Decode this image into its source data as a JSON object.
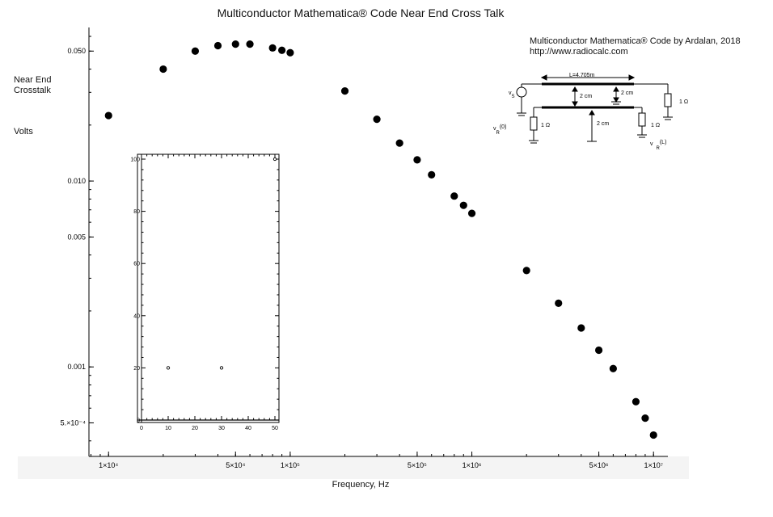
{
  "title": "Multiconductor Mathematica® Code Near End Cross Talk",
  "ylabel_lines": [
    "Near End",
    "Crosstalk"
  ],
  "ylabel_units": "Volts",
  "credit_line1": "Multiconductor Mathematica® Code by Ardalan, 2018",
  "credit_line2": "http://www.radiocalc.com",
  "chart_data": [
    {
      "type": "scatter",
      "title": "Multiconductor Mathematica® Code Near End Cross Talk",
      "xlabel": "Frequency, Hz",
      "ylabel": "Near End Crosstalk Volts",
      "xscale": "log",
      "yscale": "log",
      "xlim": [
        7800,
        12000000
      ],
      "ylim": [
        0.00033,
        0.067
      ],
      "x_ticks": [
        {
          "value": 10000,
          "label": "1×10⁴"
        },
        {
          "value": 50000,
          "label": "5×10⁴"
        },
        {
          "value": 100000,
          "label": "1×10⁵"
        },
        {
          "value": 500000,
          "label": "5×10⁵"
        },
        {
          "value": 1000000,
          "label": "1×10⁶"
        },
        {
          "value": 5000000,
          "label": "5×10⁶"
        },
        {
          "value": 10000000,
          "label": "1×10⁷"
        }
      ],
      "y_ticks": [
        {
          "value": 0.0005,
          "label": "5.×10⁻⁴"
        },
        {
          "value": 0.001,
          "label": "0.001"
        },
        {
          "value": 0.005,
          "label": "0.005"
        },
        {
          "value": 0.01,
          "label": "0.010"
        },
        {
          "value": 0.05,
          "label": "0.050"
        }
      ],
      "x": [
        10000,
        20000,
        30000,
        40000,
        50000,
        60000,
        80000,
        90000,
        100000,
        200000,
        300000,
        400000,
        500000,
        600000,
        800000,
        900000,
        1000000,
        2000000,
        3000000,
        4000000,
        5000000,
        6000000,
        8000000,
        9000000,
        10000000
      ],
      "y": [
        0.0225,
        0.04,
        0.05,
        0.0535,
        0.0545,
        0.0545,
        0.052,
        0.0505,
        0.049,
        0.0305,
        0.0215,
        0.016,
        0.013,
        0.0108,
        0.0083,
        0.0074,
        0.0067,
        0.0033,
        0.0022,
        0.00162,
        0.00123,
        0.00098,
        0.00065,
        0.00053,
        0.00043
      ]
    },
    {
      "type": "scatter",
      "title": "",
      "xlim": [
        0,
        50
      ],
      "ylim": [
        0,
        100
      ],
      "x_ticks": [
        0,
        10,
        20,
        30,
        40,
        50
      ],
      "y_ticks": [
        0,
        20,
        40,
        60,
        80,
        100
      ],
      "x": [
        10,
        30,
        50
      ],
      "y": [
        20,
        20,
        100
      ]
    }
  ],
  "diagram": {
    "length_label": "L=4.705m",
    "spacing_label_top": "2 cm",
    "spacing_label_mid": "2 cm",
    "spacing_label_bottom": "2 cm",
    "source_label": "v",
    "source_sub": "S",
    "r_left_top": "1 Ω",
    "r_right_top": "1 Ω",
    "r_left_bottom": "1 Ω",
    "r_right_bottom": "1 Ω",
    "near_end_label": "v",
    "near_end_sub": "R",
    "near_end_arg": "(0)",
    "far_end_label": "v",
    "far_end_sub": "R",
    "far_end_arg": "(L)"
  }
}
